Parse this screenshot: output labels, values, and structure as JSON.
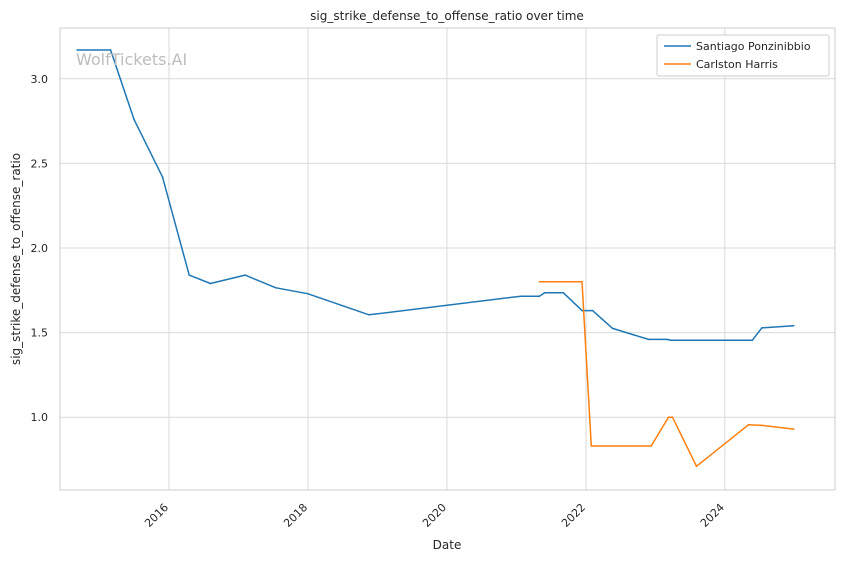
{
  "watermark": "WolfTickets.AI",
  "chart_data": {
    "type": "line",
    "title": "sig_strike_defense_to_offense_ratio over time",
    "xlabel": "Date",
    "ylabel": "sig_strike_defense_to_offense_ratio",
    "x_type": "date",
    "xlim": [
      "2014-06-07",
      "2025-08-02"
    ],
    "ylim": [
      0.57,
      3.3
    ],
    "x_ticks": [
      "2016",
      "2018",
      "2020",
      "2022",
      "2024"
    ],
    "y_ticks": [
      "1.0",
      "1.5",
      "2.0",
      "2.5",
      "3.0"
    ],
    "grid": true,
    "legend_position": "top-right",
    "colors": {
      "grid": "#d9d9d9",
      "spine": "#cccccc",
      "text": "#262626",
      "watermark": "#bdbdbd"
    },
    "series": [
      {
        "name": "Santiago Ponzinibbio",
        "color": "#1f77b4",
        "points": [
          [
            "2014-09-05",
            3.17
          ],
          [
            "2015-02-28",
            3.17
          ],
          [
            "2015-07-01",
            2.76
          ],
          [
            "2015-11-28",
            2.42
          ],
          [
            "2016-04-16",
            1.84
          ],
          [
            "2016-08-06",
            1.79
          ],
          [
            "2017-02-04",
            1.84
          ],
          [
            "2017-07-16",
            1.765
          ],
          [
            "2017-12-30",
            1.73
          ],
          [
            "2018-11-17",
            1.605
          ],
          [
            "2021-01-24",
            1.715
          ],
          [
            "2021-05-01",
            1.715
          ],
          [
            "2021-05-29",
            1.735
          ],
          [
            "2021-09-04",
            1.735
          ],
          [
            "2021-12-11",
            1.63
          ],
          [
            "2022-02-05",
            1.63
          ],
          [
            "2022-05-21",
            1.525
          ],
          [
            "2022-11-26",
            1.46
          ],
          [
            "2023-03-01",
            1.46
          ],
          [
            "2023-03-25",
            1.455
          ],
          [
            "2024-04-06",
            1.455
          ],
          [
            "2024-05-25",
            1.455
          ],
          [
            "2024-07-13",
            1.528
          ],
          [
            "2024-12-28",
            1.54
          ]
        ]
      },
      {
        "name": "Carlston Harris",
        "color": "#ff7f0e",
        "points": [
          [
            "2021-05-01",
            1.8
          ],
          [
            "2021-12-11",
            1.8
          ],
          [
            "2022-01-29",
            0.83
          ],
          [
            "2022-12-10",
            0.83
          ],
          [
            "2023-03-11",
            1.0
          ],
          [
            "2023-04-01",
            1.0
          ],
          [
            "2023-08-05",
            0.71
          ],
          [
            "2024-05-04",
            0.955
          ],
          [
            "2024-07-13",
            0.952
          ],
          [
            "2024-12-28",
            0.93
          ]
        ]
      }
    ]
  }
}
